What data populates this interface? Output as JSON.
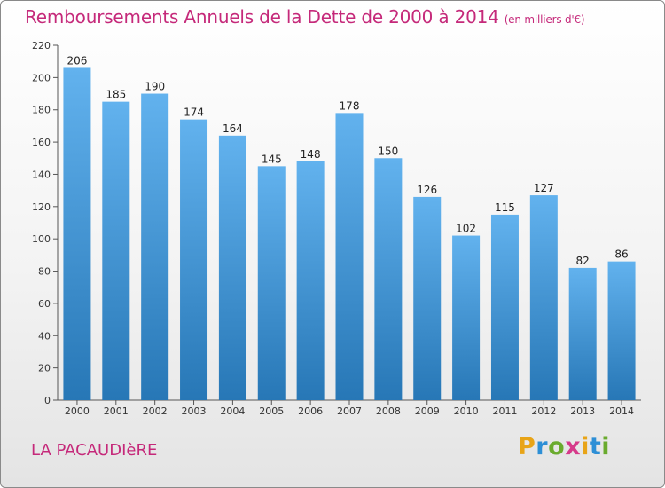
{
  "title": "Remboursements Annuels de la Dette de 2000 à 2014",
  "subtitle": "(en milliers d'€)",
  "commune": "LA PACAUDIèRE",
  "logo": {
    "letters": [
      "P",
      "r",
      "o",
      "x",
      "i",
      "t",
      "i"
    ],
    "colors": [
      "#e8a417",
      "#2d8fd6",
      "#6aab2e",
      "#d63a8a",
      "#e8a417",
      "#2d8fd6",
      "#6aab2e"
    ]
  },
  "colors": {
    "title": "#c5297a",
    "bar_top": "#62b2ee",
    "bar_bottom": "#2777b6"
  },
  "chart_data": {
    "type": "bar",
    "title": "Remboursements Annuels de la Dette de 2000 à 2014",
    "subtitle": "(en milliers d'€)",
    "categories": [
      "2000",
      "2001",
      "2002",
      "2003",
      "2004",
      "2005",
      "2006",
      "2007",
      "2008",
      "2009",
      "2010",
      "2011",
      "2012",
      "2013",
      "2014"
    ],
    "values": [
      206,
      185,
      190,
      174,
      164,
      145,
      148,
      178,
      150,
      126,
      102,
      115,
      127,
      82,
      86
    ],
    "ylim": [
      0,
      220
    ],
    "yticks": [
      0,
      20,
      40,
      60,
      80,
      100,
      120,
      140,
      160,
      180,
      200,
      220
    ],
    "grid": false,
    "data_labels": true
  }
}
